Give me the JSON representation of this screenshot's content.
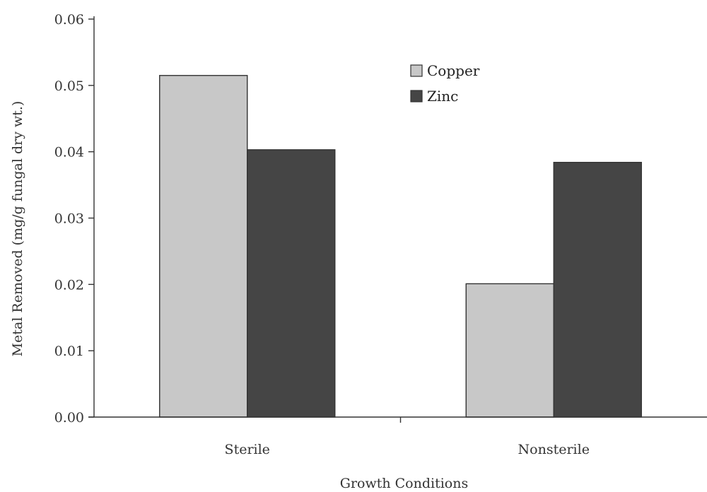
{
  "chart_data": {
    "type": "bar",
    "title": "",
    "xlabel": "Growth Conditions",
    "ylabel": "Metal Removed (mg/g fungal dry wt.)",
    "categories": [
      "Sterile",
      "Nonsterile"
    ],
    "series": [
      {
        "name": "Copper",
        "values": [
          0.0515,
          0.0201
        ],
        "color": "#c8c8c8"
      },
      {
        "name": "Zinc",
        "values": [
          0.0403,
          0.0384
        ],
        "color": "#454545"
      }
    ],
    "ylim": [
      0,
      0.06
    ],
    "yticks": [
      "0.00",
      "0.01",
      "0.02",
      "0.03",
      "0.04",
      "0.05",
      "0.06"
    ],
    "grid": false,
    "legend_position": "top-center"
  }
}
